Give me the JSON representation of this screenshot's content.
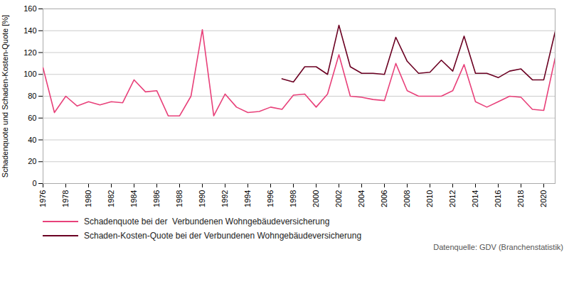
{
  "chart_data": {
    "type": "line",
    "ylabel": "Schadenquote und Schaden-Kosten-Quote [%]",
    "x": [
      1976,
      1977,
      1978,
      1979,
      1980,
      1981,
      1982,
      1983,
      1984,
      1985,
      1986,
      1987,
      1988,
      1989,
      1990,
      1991,
      1992,
      1993,
      1994,
      1995,
      1996,
      1997,
      1998,
      1999,
      2000,
      2001,
      2002,
      2003,
      2004,
      2005,
      2006,
      2007,
      2008,
      2009,
      2010,
      2011,
      2012,
      2013,
      2014,
      2015,
      2016,
      2017,
      2018,
      2019,
      2020,
      2021
    ],
    "series": [
      {
        "name": "Schadenquote bei der  Verbundenen Wohngebäudeversicherung",
        "color": "#e8417a",
        "values": [
          106,
          65,
          80,
          71,
          75,
          72,
          75,
          74,
          95,
          84,
          85,
          62,
          62,
          80,
          141,
          62,
          82,
          70,
          65,
          66,
          70,
          68,
          81,
          82,
          70,
          82,
          118,
          80,
          79,
          77,
          76,
          110,
          85,
          80,
          80,
          80,
          85,
          109,
          75,
          70,
          75,
          80,
          79,
          68,
          67,
          115
        ]
      },
      {
        "name": "Schaden-Kosten-Quote bei der Verbundenen Wohngebäudeversicherung",
        "color": "#6b0022",
        "values": [
          null,
          null,
          null,
          null,
          null,
          null,
          null,
          null,
          null,
          null,
          null,
          null,
          null,
          null,
          null,
          null,
          null,
          null,
          null,
          null,
          null,
          96,
          93,
          107,
          107,
          100,
          145,
          107,
          101,
          101,
          100,
          134,
          112,
          101,
          102,
          113,
          103,
          135,
          101,
          101,
          97,
          103,
          105,
          95,
          95,
          139
        ]
      }
    ],
    "xlim": [
      1976,
      2021
    ],
    "xticks": [
      1976,
      1978,
      1980,
      1982,
      1984,
      1986,
      1988,
      1990,
      1992,
      1994,
      1996,
      1998,
      2000,
      2002,
      2004,
      2006,
      2008,
      2010,
      2012,
      2014,
      2016,
      2018,
      2020
    ],
    "ylim": [
      0,
      160
    ],
    "yticks": [
      0,
      20,
      40,
      60,
      80,
      100,
      120,
      140,
      160
    ],
    "grid": "y",
    "legend": "bottom",
    "source": "Datenquelle: GDV (Branchenstatistik)"
  }
}
